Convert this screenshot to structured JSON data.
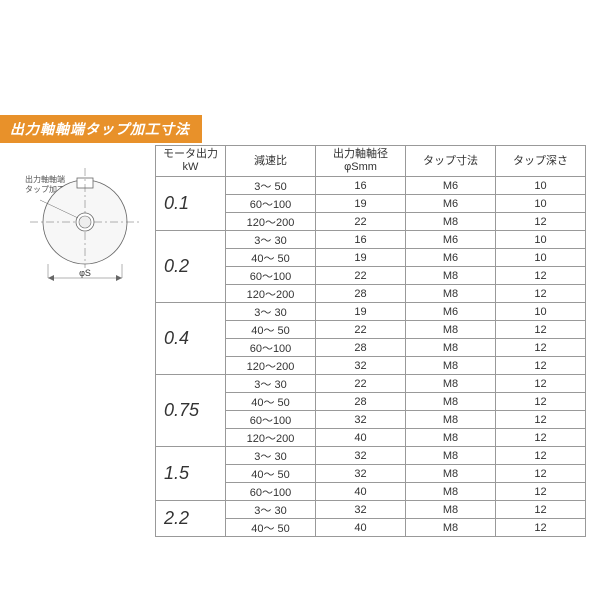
{
  "title": "出力軸軸端タップ加工寸法",
  "diagram_label_line1": "出力軸軸端",
  "diagram_label_line2": "タップ加工",
  "diagram_dim": "φS",
  "colors": {
    "title_bg": "#e8912a",
    "title_fg": "#ffffff",
    "border": "#999999",
    "text": "#333333",
    "bg": "#ffffff"
  },
  "headers": [
    "モータ出力\nkW",
    "減速比",
    "出力軸軸径\nφSmm",
    "タップ寸法",
    "タップ深さ"
  ],
  "groups": [
    {
      "kw": "0.1",
      "rows": [
        {
          "ratio": "3～  50",
          "dia": "16",
          "tap": "M6",
          "depth": "10"
        },
        {
          "ratio": "60～100",
          "dia": "19",
          "tap": "M6",
          "depth": "10"
        },
        {
          "ratio": "120～200",
          "dia": "22",
          "tap": "M8",
          "depth": "12"
        }
      ]
    },
    {
      "kw": "0.2",
      "rows": [
        {
          "ratio": "3～  30",
          "dia": "16",
          "tap": "M6",
          "depth": "10"
        },
        {
          "ratio": "40～  50",
          "dia": "19",
          "tap": "M6",
          "depth": "10"
        },
        {
          "ratio": "60～100",
          "dia": "22",
          "tap": "M8",
          "depth": "12"
        },
        {
          "ratio": "120～200",
          "dia": "28",
          "tap": "M8",
          "depth": "12"
        }
      ]
    },
    {
      "kw": "0.4",
      "rows": [
        {
          "ratio": "3～  30",
          "dia": "19",
          "tap": "M6",
          "depth": "10"
        },
        {
          "ratio": "40～  50",
          "dia": "22",
          "tap": "M8",
          "depth": "12"
        },
        {
          "ratio": "60～100",
          "dia": "28",
          "tap": "M8",
          "depth": "12"
        },
        {
          "ratio": "120～200",
          "dia": "32",
          "tap": "M8",
          "depth": "12"
        }
      ]
    },
    {
      "kw": "0.75",
      "rows": [
        {
          "ratio": "3～  30",
          "dia": "22",
          "tap": "M8",
          "depth": "12"
        },
        {
          "ratio": "40～  50",
          "dia": "28",
          "tap": "M8",
          "depth": "12"
        },
        {
          "ratio": "60～100",
          "dia": "32",
          "tap": "M8",
          "depth": "12"
        },
        {
          "ratio": "120～200",
          "dia": "40",
          "tap": "M8",
          "depth": "12"
        }
      ]
    },
    {
      "kw": "1.5",
      "rows": [
        {
          "ratio": "3～  30",
          "dia": "32",
          "tap": "M8",
          "depth": "12"
        },
        {
          "ratio": "40～  50",
          "dia": "32",
          "tap": "M8",
          "depth": "12"
        },
        {
          "ratio": "60～100",
          "dia": "40",
          "tap": "M8",
          "depth": "12"
        }
      ]
    },
    {
      "kw": "2.2",
      "rows": [
        {
          "ratio": "3～  30",
          "dia": "32",
          "tap": "M8",
          "depth": "12"
        },
        {
          "ratio": "40～  50",
          "dia": "40",
          "tap": "M8",
          "depth": "12"
        }
      ]
    }
  ]
}
